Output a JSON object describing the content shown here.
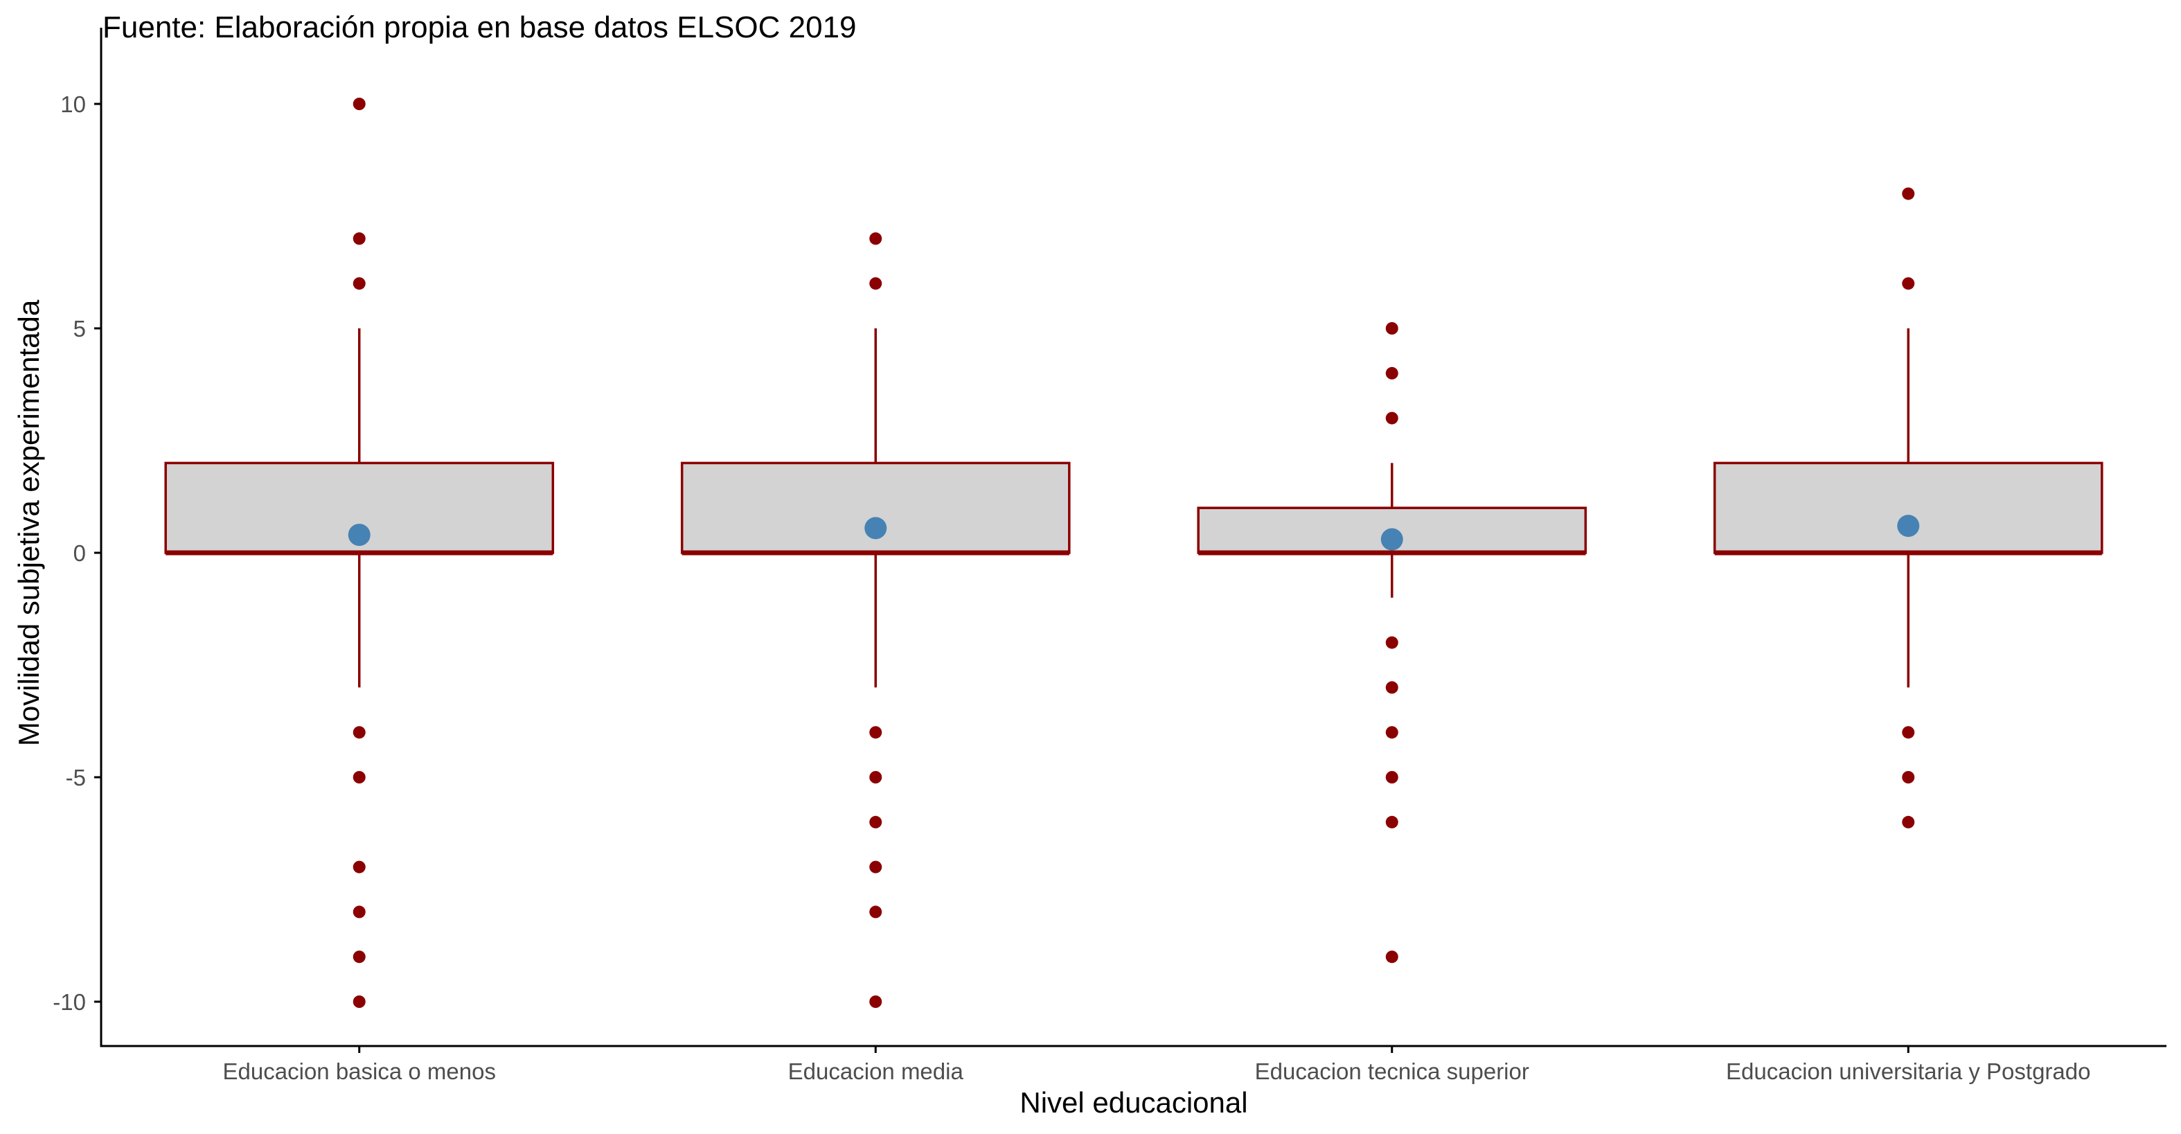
{
  "chart_data": {
    "type": "boxplot",
    "title": "Fuente: Elaboración propia en base datos ELSOC 2019",
    "xlabel": "Nivel educacional",
    "ylabel": "Movilidad subjetiva experimentada",
    "ylim": [
      -11,
      11
    ],
    "yticks": [
      {
        "value": -10,
        "label": "-10"
      },
      {
        "value": -5,
        "label": "-5"
      },
      {
        "value": 0,
        "label": "0"
      },
      {
        "value": 5,
        "label": "5"
      },
      {
        "value": 10,
        "label": "10"
      }
    ],
    "grid": false,
    "legend": "none",
    "colors": {
      "box_fill": "#d3d3d3",
      "box_outline": "#8b0000",
      "outlier": "#8b0000",
      "mean_point": "#4682b4",
      "axis": "#000000"
    },
    "categories": [
      "Educacion basica o menos",
      "Educacion media",
      "Educacion tecnica superior",
      "Educacion universitaria y Postgrado"
    ],
    "boxes": [
      {
        "category": "Educacion basica o menos",
        "whisker_low": -3,
        "q1": 0,
        "median": 0,
        "q3": 2,
        "whisker_high": 5,
        "mean": 0.4,
        "outliers": [
          10,
          7,
          6,
          -4,
          -5,
          -7,
          -8,
          -9,
          -10
        ]
      },
      {
        "category": "Educacion media",
        "whisker_low": -3,
        "q1": 0,
        "median": 0,
        "q3": 2,
        "whisker_high": 5,
        "mean": 0.55,
        "outliers": [
          7,
          6,
          -4,
          -5,
          -6,
          -7,
          -8,
          -10
        ]
      },
      {
        "category": "Educacion tecnica superior",
        "whisker_low": -1,
        "q1": 0,
        "median": 0,
        "q3": 1,
        "whisker_high": 2,
        "mean": 0.3,
        "outliers": [
          5,
          4,
          3,
          -2,
          -3,
          -4,
          -5,
          -6,
          -9
        ]
      },
      {
        "category": "Educacion universitaria y Postgrado",
        "whisker_low": -3,
        "q1": 0,
        "median": 0,
        "q3": 2,
        "whisker_high": 5,
        "mean": 0.6,
        "outliers": [
          8,
          6,
          -4,
          -5,
          -6
        ]
      }
    ]
  }
}
